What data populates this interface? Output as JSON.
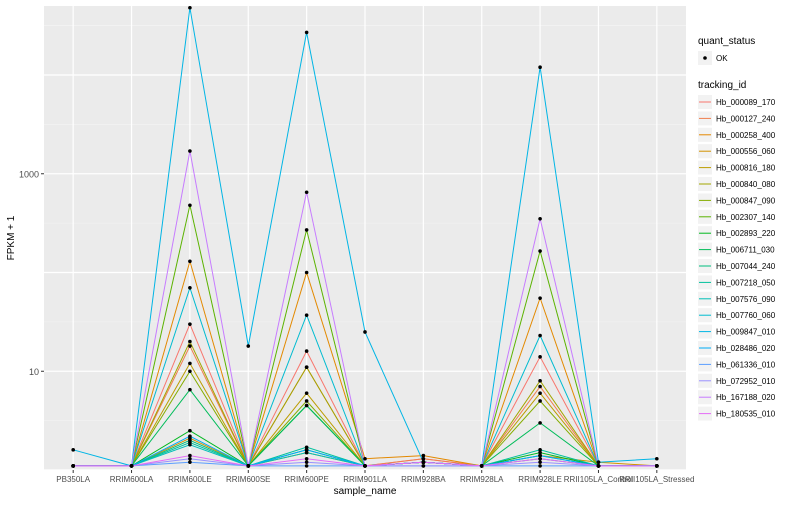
{
  "chart_data": {
    "type": "line",
    "xlabel": "sample_name",
    "ylabel": "FPKM + 1",
    "y_scale": "log10",
    "ylim": [
      1,
      50000
    ],
    "y_ticks": [
      {
        "value": 10,
        "label": "10"
      },
      {
        "value": 1000,
        "label": "1000"
      }
    ],
    "categories": [
      "PB350LA",
      "RRIM600LA",
      "RRIM600LE",
      "RRIM600SE",
      "RRIM600PE",
      "RRIM901LA",
      "RRIM928BA",
      "RRIM928LA",
      "RRIM928LE",
      "RRII105LA_Control",
      "RRII105LA_Stressed"
    ],
    "grid": true,
    "background": "#ebebeb",
    "legend_quant": {
      "title": "quant_status",
      "items": [
        "OK"
      ]
    },
    "legend_tracking_title": "tracking_id",
    "series": [
      {
        "name": "Hb_000089_170",
        "color": "#F8766D",
        "values": [
          1.1,
          1.1,
          30,
          1.1,
          16,
          1.1,
          1.3,
          1.1,
          14,
          1.1,
          1.1
        ]
      },
      {
        "name": "Hb_000127_240",
        "color": "#F07E4E",
        "values": [
          1.1,
          1.1,
          18,
          1.1,
          11,
          1.1,
          1.3,
          1.1,
          7,
          1.1,
          1.1
        ]
      },
      {
        "name": "Hb_000258_400",
        "color": "#E38900",
        "values": [
          1.1,
          1.1,
          130,
          1.1,
          100,
          1.3,
          1.4,
          1.1,
          55,
          1.1,
          1.1
        ]
      },
      {
        "name": "Hb_000556_060",
        "color": "#D29200",
        "values": [
          1.1,
          1.1,
          2.1,
          1.1,
          1.5,
          1.1,
          1.2,
          1.1,
          1.4,
          1.2,
          1.1
        ]
      },
      {
        "name": "Hb_000816_180",
        "color": "#BC9D00",
        "values": [
          1.1,
          1.1,
          12,
          1.1,
          6,
          1.1,
          1.2,
          1.1,
          6,
          1.1,
          1.1
        ]
      },
      {
        "name": "Hb_000840_080",
        "color": "#A3A500",
        "values": [
          1.1,
          1.1,
          20,
          1.1,
          11,
          1.1,
          1.2,
          1.1,
          8,
          1.1,
          1.1
        ]
      },
      {
        "name": "Hb_000847_090",
        "color": "#85AD00",
        "values": [
          1.1,
          1.1,
          10,
          1.1,
          5,
          1.1,
          1.2,
          1.1,
          5,
          1.1,
          1.1
        ]
      },
      {
        "name": "Hb_002307_140",
        "color": "#5BB300",
        "values": [
          1.1,
          1.1,
          480,
          1.1,
          270,
          1.1,
          1.2,
          1.1,
          165,
          1.1,
          1.1
        ]
      },
      {
        "name": "Hb_002893_220",
        "color": "#00B81F",
        "values": [
          1.1,
          1.1,
          2.5,
          1.1,
          4.5,
          1.1,
          1.2,
          1.1,
          1.5,
          1.1,
          1.1
        ]
      },
      {
        "name": "Hb_006711_030",
        "color": "#00BC59",
        "values": [
          1.1,
          1.1,
          6.5,
          1.1,
          4.5,
          1.1,
          1.2,
          1.1,
          3,
          1.1,
          1.1
        ]
      },
      {
        "name": "Hb_007044_240",
        "color": "#00BF7D",
        "values": [
          1.1,
          1.1,
          2,
          1.1,
          1.6,
          1.1,
          1.2,
          1.1,
          1.3,
          1.1,
          1.1
        ]
      },
      {
        "name": "Hb_007218_050",
        "color": "#00C09C",
        "values": [
          1.1,
          1.1,
          1.9,
          1.1,
          1.7,
          1.1,
          1.2,
          1.1,
          1.6,
          1.1,
          1.1
        ]
      },
      {
        "name": "Hb_007576_090",
        "color": "#00BFB7",
        "values": [
          1.1,
          1.1,
          1.8,
          1.1,
          1.5,
          1.1,
          1.2,
          1.1,
          1.4,
          1.1,
          1.1
        ]
      },
      {
        "name": "Hb_007760_060",
        "color": "#00BBD0",
        "values": [
          1.1,
          1.1,
          70,
          1.1,
          37,
          1.1,
          1.2,
          1.1,
          23,
          1.1,
          1.1
        ]
      },
      {
        "name": "Hb_009847_010",
        "color": "#00B5E5",
        "values": [
          1.6,
          1.1,
          48000,
          18,
          27000,
          25,
          1.2,
          1.1,
          12000,
          1.2,
          1.3
        ]
      },
      {
        "name": "Hb_028486_020",
        "color": "#00ACF6",
        "values": [
          1.1,
          1.1,
          2.2,
          1.1,
          1.6,
          1.1,
          1.2,
          1.1,
          1.4,
          1.1,
          1.1
        ]
      },
      {
        "name": "Hb_061336_010",
        "color": "#5A9EFF",
        "values": [
          1.1,
          1.1,
          1.2,
          1.1,
          1.1,
          1.1,
          1.1,
          1.1,
          1.1,
          1.1,
          1.1
        ]
      },
      {
        "name": "Hb_072952_010",
        "color": "#9990FF",
        "values": [
          1.1,
          1.1,
          1.3,
          1.1,
          1.2,
          1.1,
          1.1,
          1.1,
          1.2,
          1.1,
          1.1
        ]
      },
      {
        "name": "Hb_167188_020",
        "color": "#C77CFF",
        "values": [
          1.1,
          1.1,
          1700,
          1.1,
          650,
          1.1,
          1.2,
          1.1,
          350,
          1.1,
          1.1
        ]
      },
      {
        "name": "Hb_180535_010",
        "color": "#E46DF6",
        "values": [
          1.1,
          1.1,
          1.4,
          1.1,
          1.3,
          1.1,
          1.2,
          1.1,
          1.3,
          1.1,
          1.1
        ]
      }
    ]
  }
}
